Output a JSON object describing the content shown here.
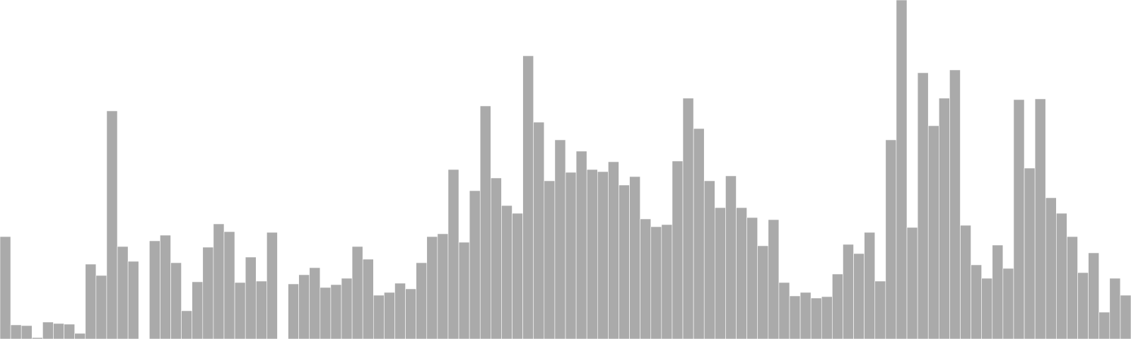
{
  "chart_data": {
    "type": "bar",
    "title": "",
    "xlabel": "",
    "ylabel": "",
    "ylim": [
      0,
      480
    ],
    "grid": false,
    "legend": "none",
    "bar_color": "#aaaaaa",
    "bar_edge_color": "#ffffff",
    "values": [
      145,
      20,
      19,
      2,
      24,
      22,
      21,
      8,
      106,
      90,
      323,
      131,
      110,
      0,
      139,
      147,
      108,
      40,
      81,
      130,
      163,
      152,
      80,
      116,
      82,
      151,
      0,
      78,
      91,
      101,
      73,
      77,
      86,
      131,
      113,
      62,
      66,
      79,
      71,
      108,
      145,
      149,
      240,
      137,
      210,
      330,
      228,
      189,
      178,
      401,
      307,
      224,
      282,
      236,
      266,
      240,
      237,
      251,
      218,
      230,
      170,
      159,
      162,
      252,
      341,
      298,
      224,
      186,
      231,
      186,
      172,
      132,
      169,
      80,
      61,
      66,
      58,
      60,
      92,
      134,
      121,
      151,
      82,
      282,
      480,
      158,
      377,
      302,
      341,
      381,
      161,
      105,
      86,
      133,
      100,
      339,
      242,
      340,
      200,
      178,
      145,
      94,
      122,
      38,
      86,
      62
    ]
  }
}
